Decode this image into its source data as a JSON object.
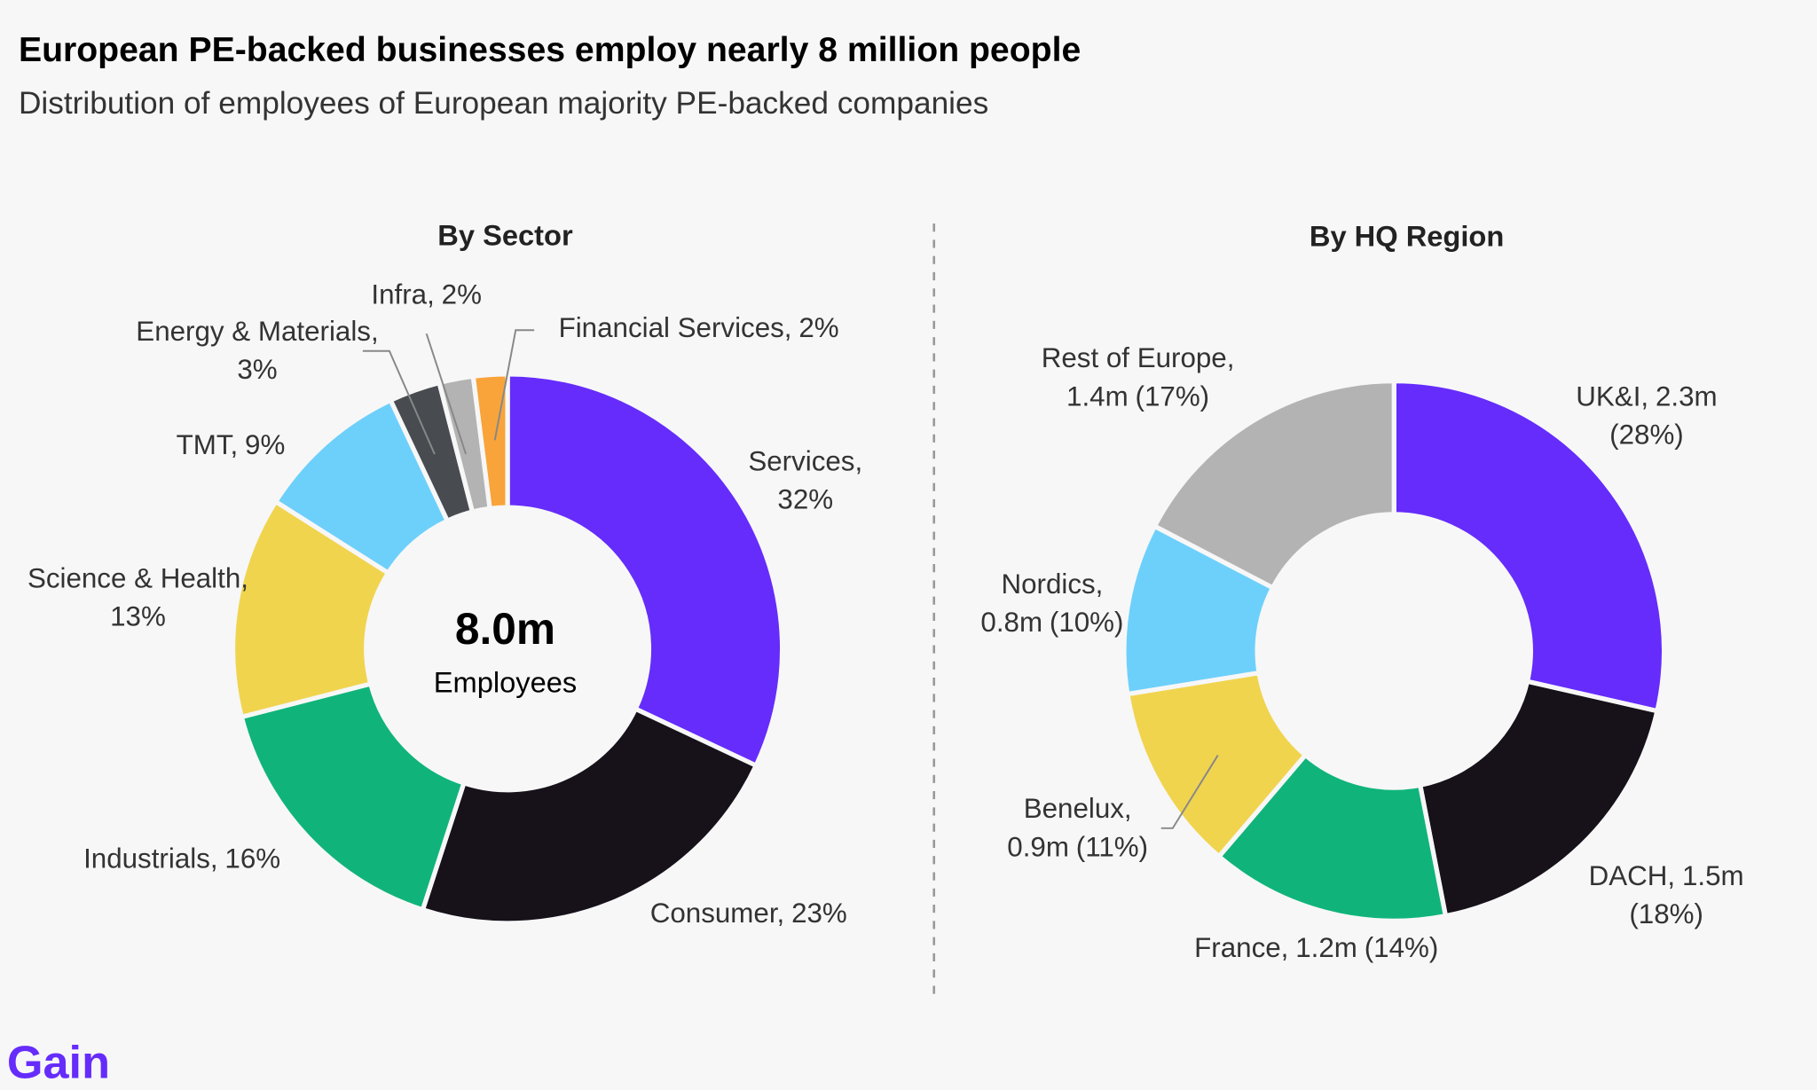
{
  "title": "European PE-backed businesses employ nearly 8 million people",
  "subtitle": "Distribution of employees of European majority PE-backed companies",
  "logo": "Gain",
  "chart_data": [
    {
      "type": "donut",
      "title": "By Sector",
      "center_label": "8.0m",
      "center_caption": "Employees",
      "categories": [
        "Services,",
        "Consumer,",
        "Industrials,",
        "Science & Health,",
        "TMT,",
        "Energy & Materials,",
        "Infra,",
        "Financial Services,"
      ],
      "values": [
        32,
        23,
        16,
        13,
        9,
        3,
        2,
        2
      ],
      "value_labels": [
        "32%",
        "23%",
        "16%",
        "13%",
        "9%",
        "3%",
        "2%",
        "2%"
      ],
      "colors": [
        "#652cfb",
        "#17111a",
        "#10b47a",
        "#f0d44e",
        "#6dd0fb",
        "#484b50",
        "#b3b3b3",
        "#f8a43a"
      ]
    },
    {
      "type": "donut",
      "title": "By HQ Region",
      "categories": [
        "UK&I,",
        "DACH,",
        "France,",
        "Benelux,",
        "Nordics,",
        "Rest of Europe,"
      ],
      "values": [
        28,
        18,
        14,
        11,
        10,
        17
      ],
      "value_labels": [
        "(28%)",
        "(18%)",
        "(14%)",
        "(11%)",
        "(10%)",
        "(17%)"
      ],
      "employees": [
        2.3,
        1.5,
        1.2,
        0.9,
        0.8,
        1.4
      ],
      "employee_labels": [
        "2.3m",
        "1.5m",
        "1.2m",
        "0.9m",
        "0.8m",
        "1.4m"
      ],
      "colors": [
        "#652cfb",
        "#17111a",
        "#10b47a",
        "#f0d44e",
        "#6dd0fb",
        "#b3b3b3"
      ]
    }
  ]
}
